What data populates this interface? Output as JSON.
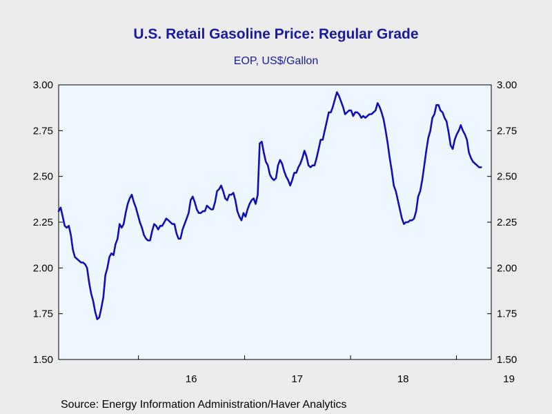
{
  "colors": {
    "background": "#ececec",
    "plot_background": "#eef6ff",
    "series": "#0f0fb4",
    "title": "#1a1a9c"
  },
  "chart_data": {
    "type": "line",
    "title": "U.S. Retail Gasoline Price: Regular Grade",
    "subtitle": "EOP, US$/Gallon",
    "source": "Source:  Energy Information Administration/Haver Analytics",
    "ylim": [
      1.5,
      3.0
    ],
    "yticks": [
      "1.50",
      "1.75",
      "2.00",
      "2.25",
      "2.50",
      "2.75",
      "3.00"
    ],
    "y_axes": [
      "left",
      "right"
    ],
    "xlim": [
      "2015-04-01",
      "2019-05-01"
    ],
    "x_year_labels": [
      {
        "label": "16",
        "date": "2016-07-01"
      },
      {
        "label": "17",
        "date": "2017-07-01"
      },
      {
        "label": "18",
        "date": "2018-07-01"
      },
      {
        "label": "19",
        "date": "2019-07-01"
      }
    ],
    "x_year_boundaries": [
      "2016-01-01",
      "2017-01-01",
      "2018-01-01",
      "2019-01-01"
    ],
    "grid": false,
    "series": [
      {
        "points": [
          [
            "2015-04-01",
            2.31
          ],
          [
            "2015-04-08",
            2.33
          ],
          [
            "2015-04-15",
            2.28
          ],
          [
            "2015-04-22",
            2.23
          ],
          [
            "2015-04-29",
            2.22
          ],
          [
            "2015-05-06",
            2.23
          ],
          [
            "2015-05-13",
            2.18
          ],
          [
            "2015-05-20",
            2.1
          ],
          [
            "2015-05-27",
            2.06
          ],
          [
            "2015-06-03",
            2.05
          ],
          [
            "2015-06-10",
            2.04
          ],
          [
            "2015-06-17",
            2.03
          ],
          [
            "2015-06-24",
            2.03
          ],
          [
            "2015-07-01",
            2.02
          ],
          [
            "2015-07-08",
            2.0
          ],
          [
            "2015-07-15",
            1.92
          ],
          [
            "2015-07-22",
            1.86
          ],
          [
            "2015-07-29",
            1.82
          ],
          [
            "2015-08-05",
            1.76
          ],
          [
            "2015-08-12",
            1.72
          ],
          [
            "2015-08-19",
            1.73
          ],
          [
            "2015-08-26",
            1.78
          ],
          [
            "2015-09-02",
            1.84
          ],
          [
            "2015-09-09",
            1.96
          ],
          [
            "2015-09-16",
            2.0
          ],
          [
            "2015-09-23",
            2.06
          ],
          [
            "2015-09-30",
            2.08
          ],
          [
            "2015-10-07",
            2.07
          ],
          [
            "2015-10-14",
            2.13
          ],
          [
            "2015-10-21",
            2.16
          ],
          [
            "2015-10-28",
            2.24
          ],
          [
            "2015-11-04",
            2.22
          ],
          [
            "2015-11-11",
            2.24
          ],
          [
            "2015-11-18",
            2.3
          ],
          [
            "2015-11-25",
            2.35
          ],
          [
            "2015-12-02",
            2.38
          ],
          [
            "2015-12-09",
            2.4
          ],
          [
            "2015-12-16",
            2.36
          ],
          [
            "2015-12-23",
            2.33
          ],
          [
            "2015-12-30",
            2.29
          ],
          [
            "2016-01-06",
            2.25
          ],
          [
            "2016-01-13",
            2.22
          ],
          [
            "2016-01-20",
            2.18
          ],
          [
            "2016-01-27",
            2.16
          ],
          [
            "2016-02-03",
            2.15
          ],
          [
            "2016-02-10",
            2.15
          ],
          [
            "2016-02-17",
            2.2
          ],
          [
            "2016-02-24",
            2.24
          ],
          [
            "2016-03-02",
            2.23
          ],
          [
            "2016-03-09",
            2.21
          ],
          [
            "2016-03-16",
            2.23
          ],
          [
            "2016-03-23",
            2.23
          ],
          [
            "2016-03-30",
            2.25
          ],
          [
            "2016-04-06",
            2.27
          ],
          [
            "2016-04-13",
            2.26
          ],
          [
            "2016-04-20",
            2.25
          ],
          [
            "2016-04-27",
            2.24
          ],
          [
            "2016-05-04",
            2.24
          ],
          [
            "2016-05-11",
            2.19
          ],
          [
            "2016-05-18",
            2.16
          ],
          [
            "2016-05-25",
            2.16
          ],
          [
            "2016-06-01",
            2.21
          ],
          [
            "2016-06-08",
            2.24
          ],
          [
            "2016-06-15",
            2.27
          ],
          [
            "2016-06-22",
            2.3
          ],
          [
            "2016-06-29",
            2.37
          ],
          [
            "2016-07-06",
            2.39
          ],
          [
            "2016-07-13",
            2.36
          ],
          [
            "2016-07-20",
            2.32
          ],
          [
            "2016-07-27",
            2.3
          ],
          [
            "2016-08-03",
            2.3
          ],
          [
            "2016-08-10",
            2.31
          ],
          [
            "2016-08-17",
            2.31
          ],
          [
            "2016-08-24",
            2.34
          ],
          [
            "2016-08-31",
            2.33
          ],
          [
            "2016-09-07",
            2.32
          ],
          [
            "2016-09-14",
            2.32
          ],
          [
            "2016-09-21",
            2.36
          ],
          [
            "2016-09-28",
            2.42
          ],
          [
            "2016-10-05",
            2.43
          ],
          [
            "2016-10-12",
            2.45
          ],
          [
            "2016-10-19",
            2.42
          ],
          [
            "2016-10-26",
            2.38
          ],
          [
            "2016-11-02",
            2.37
          ],
          [
            "2016-11-09",
            2.4
          ],
          [
            "2016-11-16",
            2.4
          ],
          [
            "2016-11-23",
            2.41
          ],
          [
            "2016-11-30",
            2.37
          ],
          [
            "2016-12-07",
            2.31
          ],
          [
            "2016-12-14",
            2.28
          ],
          [
            "2016-12-21",
            2.26
          ],
          [
            "2016-12-28",
            2.3
          ],
          [
            "2017-01-04",
            2.28
          ],
          [
            "2017-01-11",
            2.32
          ],
          [
            "2017-01-18",
            2.35
          ],
          [
            "2017-01-25",
            2.37
          ],
          [
            "2017-02-01",
            2.38
          ],
          [
            "2017-02-08",
            2.35
          ],
          [
            "2017-02-15",
            2.4
          ],
          [
            "2017-02-22",
            2.68
          ],
          [
            "2017-03-01",
            2.69
          ],
          [
            "2017-03-08",
            2.63
          ],
          [
            "2017-03-15",
            2.58
          ],
          [
            "2017-03-22",
            2.56
          ],
          [
            "2017-03-29",
            2.51
          ],
          [
            "2017-04-05",
            2.49
          ],
          [
            "2017-04-12",
            2.48
          ],
          [
            "2017-04-19",
            2.49
          ],
          [
            "2017-04-26",
            2.56
          ],
          [
            "2017-05-03",
            2.59
          ],
          [
            "2017-05-10",
            2.57
          ],
          [
            "2017-05-17",
            2.53
          ],
          [
            "2017-05-24",
            2.5
          ],
          [
            "2017-05-31",
            2.48
          ],
          [
            "2017-06-07",
            2.45
          ],
          [
            "2017-06-14",
            2.48
          ],
          [
            "2017-06-21",
            2.52
          ],
          [
            "2017-06-28",
            2.52
          ],
          [
            "2017-07-05",
            2.55
          ],
          [
            "2017-07-12",
            2.57
          ],
          [
            "2017-07-19",
            2.6
          ],
          [
            "2017-07-26",
            2.64
          ],
          [
            "2017-08-02",
            2.61
          ],
          [
            "2017-08-09",
            2.56
          ],
          [
            "2017-08-16",
            2.55
          ],
          [
            "2017-08-23",
            2.56
          ],
          [
            "2017-08-30",
            2.56
          ],
          [
            "2017-09-06",
            2.6
          ],
          [
            "2017-09-13",
            2.65
          ],
          [
            "2017-09-20",
            2.7
          ],
          [
            "2017-09-27",
            2.7
          ],
          [
            "2017-10-04",
            2.75
          ],
          [
            "2017-10-11",
            2.8
          ],
          [
            "2017-10-18",
            2.85
          ],
          [
            "2017-10-25",
            2.85
          ],
          [
            "2017-11-01",
            2.88
          ],
          [
            "2017-11-08",
            2.92
          ],
          [
            "2017-11-15",
            2.96
          ],
          [
            "2017-11-22",
            2.94
          ],
          [
            "2017-11-29",
            2.91
          ],
          [
            "2017-12-06",
            2.88
          ],
          [
            "2017-12-13",
            2.84
          ],
          [
            "2017-12-20",
            2.85
          ],
          [
            "2017-12-27",
            2.86
          ],
          [
            "2018-01-03",
            2.86
          ],
          [
            "2018-01-10",
            2.83
          ],
          [
            "2018-01-17",
            2.85
          ],
          [
            "2018-01-24",
            2.85
          ],
          [
            "2018-01-31",
            2.84
          ],
          [
            "2018-02-07",
            2.82
          ],
          [
            "2018-02-14",
            2.83
          ],
          [
            "2018-02-21",
            2.82
          ],
          [
            "2018-02-28",
            2.83
          ],
          [
            "2018-03-07",
            2.84
          ],
          [
            "2018-03-14",
            2.84
          ],
          [
            "2018-03-21",
            2.85
          ],
          [
            "2018-03-28",
            2.86
          ],
          [
            "2018-04-04",
            2.9
          ],
          [
            "2018-04-11",
            2.88
          ],
          [
            "2018-04-18",
            2.85
          ],
          [
            "2018-04-25",
            2.81
          ],
          [
            "2018-05-02",
            2.75
          ],
          [
            "2018-05-09",
            2.68
          ],
          [
            "2018-05-16",
            2.6
          ],
          [
            "2018-05-23",
            2.53
          ],
          [
            "2018-05-30",
            2.45
          ],
          [
            "2018-06-06",
            2.42
          ],
          [
            "2018-06-13",
            2.37
          ],
          [
            "2018-06-20",
            2.32
          ],
          [
            "2018-06-27",
            2.27
          ],
          [
            "2018-07-04",
            2.24
          ],
          [
            "2018-07-11",
            2.25
          ],
          [
            "2018-07-18",
            2.25
          ],
          [
            "2018-07-25",
            2.26
          ],
          [
            "2018-08-01",
            2.26
          ],
          [
            "2018-08-08",
            2.27
          ],
          [
            "2018-08-15",
            2.31
          ],
          [
            "2018-08-22",
            2.39
          ],
          [
            "2018-08-29",
            2.42
          ],
          [
            "2018-09-05",
            2.48
          ],
          [
            "2018-09-12",
            2.56
          ],
          [
            "2018-09-19",
            2.64
          ],
          [
            "2018-09-26",
            2.71
          ],
          [
            "2018-10-03",
            2.75
          ],
          [
            "2018-10-10",
            2.82
          ],
          [
            "2018-10-17",
            2.84
          ],
          [
            "2018-10-24",
            2.89
          ],
          [
            "2018-10-31",
            2.89
          ],
          [
            "2018-11-07",
            2.86
          ],
          [
            "2018-11-14",
            2.85
          ],
          [
            "2018-11-21",
            2.82
          ],
          [
            "2018-11-28",
            2.8
          ],
          [
            "2018-12-05",
            2.74
          ],
          [
            "2018-12-12",
            2.67
          ],
          [
            "2018-12-19",
            2.65
          ],
          [
            "2018-12-26",
            2.7
          ],
          [
            "2019-01-02",
            2.73
          ],
          [
            "2019-01-09",
            2.75
          ],
          [
            "2019-01-16",
            2.78
          ],
          [
            "2019-01-23",
            2.75
          ],
          [
            "2019-01-30",
            2.73
          ],
          [
            "2019-02-06",
            2.7
          ],
          [
            "2019-02-13",
            2.63
          ],
          [
            "2019-02-20",
            2.6
          ],
          [
            "2019-02-27",
            2.58
          ],
          [
            "2019-03-06",
            2.57
          ],
          [
            "2019-03-13",
            2.56
          ],
          [
            "2019-03-20",
            2.55
          ],
          [
            "2019-03-27",
            2.55
          ]
        ]
      }
    ]
  }
}
